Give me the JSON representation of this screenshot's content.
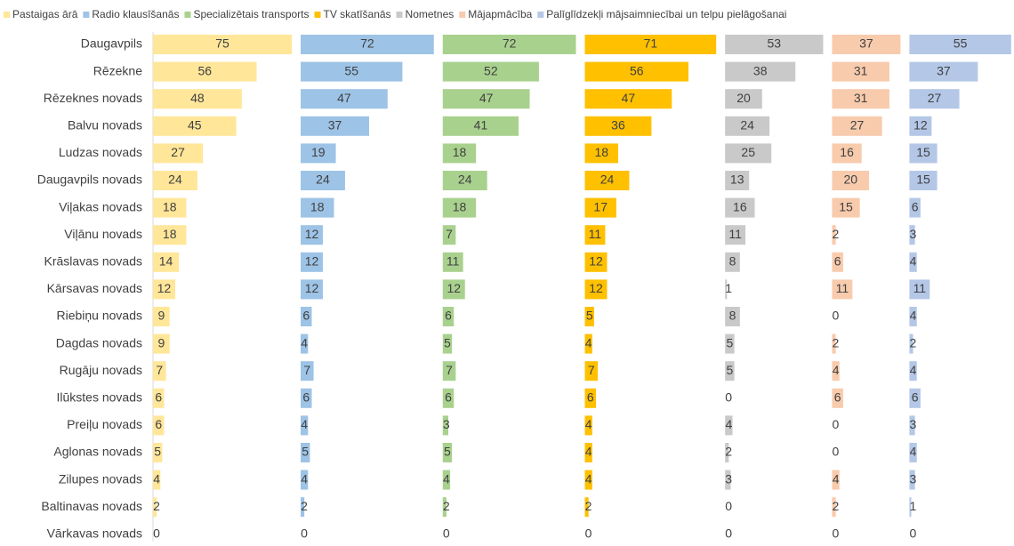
{
  "chart_data": {
    "type": "bar",
    "orientation": "horizontal",
    "categories": [
      "Daugavpils",
      "Rēzekne",
      "Rēzeknes novads",
      "Balvu novads",
      "Ludzas novads",
      "Daugavpils novads",
      "Viļakas novads",
      "Viļānu novads",
      "Krāslavas novads",
      "Kārsavas novads",
      "Riebiņu novads",
      "Dagdas novads",
      "Rugāju novads",
      "Ilūkstes novads",
      "Preiļu novads",
      "Aglonas novads",
      "Zilupes novads",
      "Baltinavas novads",
      "Vārkavas novads"
    ],
    "series": [
      {
        "name": "Pastaigas ārā",
        "color": "#FFE699",
        "values": [
          75,
          56,
          48,
          45,
          27,
          24,
          18,
          18,
          14,
          12,
          9,
          9,
          7,
          6,
          6,
          5,
          4,
          2,
          0
        ]
      },
      {
        "name": "Radio klausīšanās",
        "color": "#9DC3E6",
        "values": [
          72,
          55,
          47,
          37,
          19,
          24,
          18,
          12,
          12,
          12,
          6,
          4,
          7,
          6,
          4,
          5,
          4,
          2,
          0
        ]
      },
      {
        "name": "Specializētais transports",
        "color": "#A9D18E",
        "values": [
          72,
          52,
          47,
          41,
          18,
          24,
          18,
          7,
          11,
          12,
          6,
          5,
          7,
          6,
          3,
          5,
          4,
          2,
          0
        ]
      },
      {
        "name": "TV skatīšanās",
        "color": "#FFC000",
        "values": [
          71,
          56,
          47,
          36,
          18,
          24,
          17,
          11,
          12,
          12,
          5,
          4,
          7,
          6,
          4,
          4,
          4,
          2,
          0
        ]
      },
      {
        "name": "Nometnes",
        "color": "#C9C9C9",
        "values": [
          53,
          38,
          20,
          24,
          25,
          13,
          16,
          11,
          8,
          1,
          8,
          5,
          5,
          0,
          4,
          2,
          3,
          0,
          0
        ]
      },
      {
        "name": "Mājapmācība",
        "color": "#F8CBAD",
        "values": [
          37,
          31,
          31,
          27,
          16,
          20,
          15,
          2,
          6,
          11,
          0,
          2,
          4,
          6,
          0,
          0,
          4,
          2,
          0
        ]
      },
      {
        "name": "Palīglīdzekļi mājsaimniecībai un telpu pielāgošanai",
        "color": "#B4C7E7",
        "values": [
          55,
          37,
          27,
          12,
          15,
          15,
          6,
          3,
          4,
          11,
          4,
          2,
          4,
          6,
          3,
          4,
          3,
          1,
          0
        ]
      }
    ]
  }
}
